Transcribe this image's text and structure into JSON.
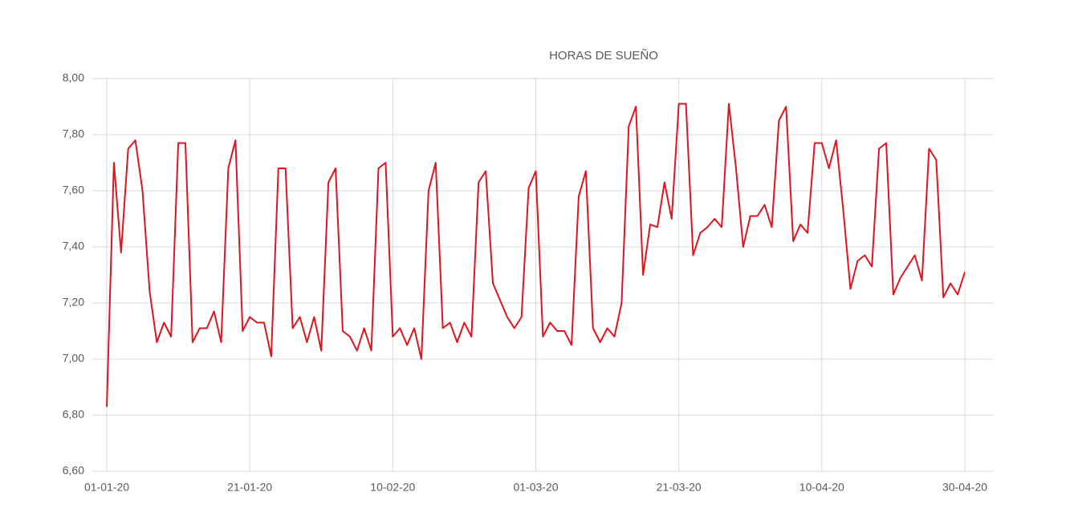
{
  "chart_data": {
    "type": "line",
    "title": "HORAS DE SUEÑO",
    "x": [
      "2020-01-01",
      "2020-01-02",
      "2020-01-03",
      "2020-01-04",
      "2020-01-05",
      "2020-01-06",
      "2020-01-07",
      "2020-01-08",
      "2020-01-09",
      "2020-01-10",
      "2020-01-11",
      "2020-01-12",
      "2020-01-13",
      "2020-01-14",
      "2020-01-15",
      "2020-01-16",
      "2020-01-17",
      "2020-01-18",
      "2020-01-19",
      "2020-01-20",
      "2020-01-21",
      "2020-01-22",
      "2020-01-23",
      "2020-01-24",
      "2020-01-25",
      "2020-01-26",
      "2020-01-27",
      "2020-01-28",
      "2020-01-29",
      "2020-01-30",
      "2020-01-31",
      "2020-02-01",
      "2020-02-02",
      "2020-02-03",
      "2020-02-04",
      "2020-02-05",
      "2020-02-06",
      "2020-02-07",
      "2020-02-08",
      "2020-02-09",
      "2020-02-10",
      "2020-02-11",
      "2020-02-12",
      "2020-02-13",
      "2020-02-14",
      "2020-02-15",
      "2020-02-16",
      "2020-02-17",
      "2020-02-18",
      "2020-02-19",
      "2020-02-20",
      "2020-02-21",
      "2020-02-22",
      "2020-02-23",
      "2020-02-24",
      "2020-02-25",
      "2020-02-26",
      "2020-02-27",
      "2020-02-28",
      "2020-02-29",
      "2020-03-01",
      "2020-03-02",
      "2020-03-03",
      "2020-03-04",
      "2020-03-05",
      "2020-03-06",
      "2020-03-07",
      "2020-03-08",
      "2020-03-09",
      "2020-03-10",
      "2020-03-11",
      "2020-03-12",
      "2020-03-13",
      "2020-03-14",
      "2020-03-15",
      "2020-03-16",
      "2020-03-17",
      "2020-03-18",
      "2020-03-19",
      "2020-03-20",
      "2020-03-21",
      "2020-03-22",
      "2020-03-23",
      "2020-03-24",
      "2020-03-25",
      "2020-03-26",
      "2020-03-27",
      "2020-03-28",
      "2020-03-29",
      "2020-03-30",
      "2020-03-31",
      "2020-04-01",
      "2020-04-02",
      "2020-04-03",
      "2020-04-04",
      "2020-04-05",
      "2020-04-06",
      "2020-04-07",
      "2020-04-08",
      "2020-04-09",
      "2020-04-10",
      "2020-04-11",
      "2020-04-12",
      "2020-04-13",
      "2020-04-14",
      "2020-04-15",
      "2020-04-16",
      "2020-04-17",
      "2020-04-18",
      "2020-04-19",
      "2020-04-20",
      "2020-04-21",
      "2020-04-22",
      "2020-04-23",
      "2020-04-24",
      "2020-04-25",
      "2020-04-26",
      "2020-04-27",
      "2020-04-28",
      "2020-04-29",
      "2020-04-30"
    ],
    "series": [
      {
        "color": "#e0141e",
        "values": [
          6.83,
          7.7,
          7.38,
          7.75,
          7.78,
          7.6,
          7.24,
          7.06,
          7.13,
          7.08,
          7.77,
          7.77,
          7.06,
          7.11,
          7.11,
          7.17,
          7.06,
          7.68,
          7.78,
          7.1,
          7.15,
          7.13,
          7.13,
          7.01,
          7.68,
          7.68,
          7.11,
          7.15,
          7.06,
          7.15,
          7.03,
          7.63,
          7.68,
          7.1,
          7.08,
          7.03,
          7.11,
          7.03,
          7.68,
          7.7,
          7.08,
          7.11,
          7.05,
          7.11,
          7.0,
          7.6,
          7.7,
          7.11,
          7.13,
          7.06,
          7.13,
          7.08,
          7.63,
          7.67,
          7.27,
          7.21,
          7.15,
          7.11,
          7.15,
          7.61,
          7.67,
          7.08,
          7.13,
          7.1,
          7.1,
          7.05,
          7.58,
          7.67,
          7.11,
          7.06,
          7.11,
          7.08,
          7.2,
          7.83,
          7.9,
          7.3,
          7.48,
          7.47,
          7.63,
          7.5,
          7.91,
          7.91,
          7.37,
          7.45,
          7.47,
          7.5,
          7.47,
          7.91,
          7.68,
          7.4,
          7.51,
          7.51,
          7.55,
          7.47,
          7.85,
          7.9,
          7.42,
          7.48,
          7.45,
          7.77,
          7.77,
          7.68,
          7.78,
          7.53,
          7.25,
          7.35,
          7.37,
          7.33,
          7.75,
          7.77,
          7.23,
          7.29,
          7.33,
          7.37,
          7.28,
          7.75,
          7.71,
          7.22,
          7.27,
          7.23,
          7.31
        ]
      }
    ],
    "xlim": [
      "2020-01-01",
      "2020-04-30"
    ],
    "xticks": [
      {
        "value": "2020-01-01",
        "label": "01-01-20"
      },
      {
        "value": "2020-01-21",
        "label": "21-01-20"
      },
      {
        "value": "2020-02-10",
        "label": "10-02-20"
      },
      {
        "value": "2020-03-01",
        "label": "01-03-20"
      },
      {
        "value": "2020-03-21",
        "label": "21-03-20"
      },
      {
        "value": "2020-04-10",
        "label": "10-04-20"
      },
      {
        "value": "2020-04-30",
        "label": "30-04-20"
      }
    ],
    "ylim": [
      6.6,
      8
    ],
    "yticks": [
      {
        "value": 6.6,
        "label": "6,60"
      },
      {
        "value": 6.8,
        "label": "6,80"
      },
      {
        "value": 7,
        "label": "7,00"
      },
      {
        "value": 7.2,
        "label": "7,20"
      },
      {
        "value": 7.4,
        "label": "7,40"
      },
      {
        "value": 7.6,
        "label": "7,60"
      },
      {
        "value": 7.8,
        "label": "7,80"
      },
      {
        "value": 8,
        "label": "8,00"
      }
    ],
    "grid": true
  }
}
